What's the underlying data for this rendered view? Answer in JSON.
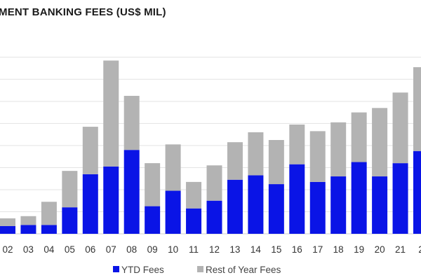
{
  "chart_data": {
    "type": "bar",
    "stacked": true,
    "title": "MENT BANKING FEES (US$ MIL)",
    "xlabel": "",
    "ylabel": "",
    "categories": [
      "02",
      "03",
      "04",
      "05",
      "06",
      "07",
      "08",
      "09",
      "10",
      "11",
      "12",
      "13",
      "14",
      "15",
      "16",
      "17",
      "18",
      "19",
      "20",
      "21",
      "2"
    ],
    "series": [
      {
        "name": "YTD Fees",
        "color": "#0a14e6",
        "values": [
          3.5,
          4,
          4,
          12,
          27,
          30.5,
          38,
          12.5,
          19.5,
          11.5,
          15,
          24.5,
          26.5,
          22.5,
          31.5,
          23.5,
          26,
          32.5,
          26,
          32,
          37.5
        ]
      },
      {
        "name": "Rest of Year Fees",
        "color": "#b3b3b3",
        "values": [
          3.5,
          4,
          10.5,
          16.5,
          21.5,
          48,
          24.5,
          19.5,
          21,
          12,
          16,
          17,
          19.5,
          20,
          18,
          23,
          24.5,
          22.5,
          31,
          32,
          38
        ]
      }
    ],
    "ylim": [
      0,
      85
    ],
    "y_gridlines": [
      0,
      10,
      20,
      30,
      40,
      50,
      60,
      70,
      80
    ],
    "grid": true,
    "legend": "bottom-center"
  }
}
